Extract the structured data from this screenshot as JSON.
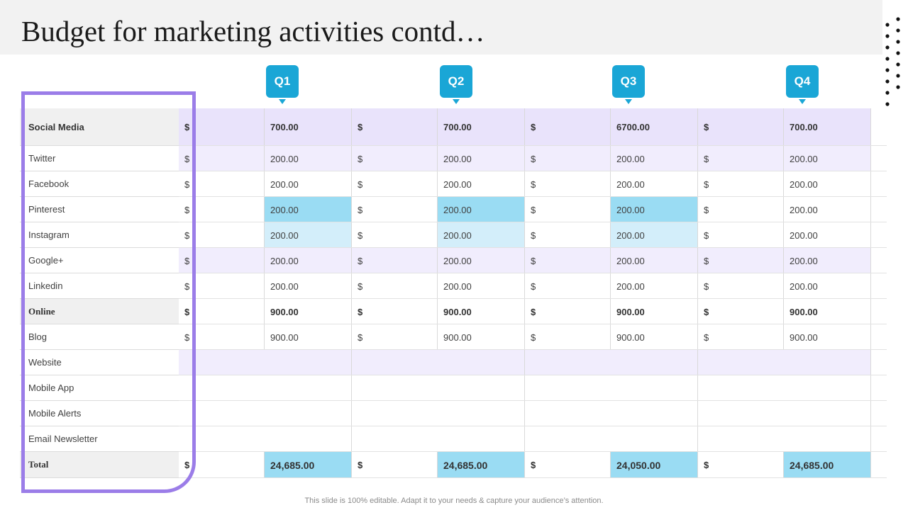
{
  "title": "Budget for marketing activities contd…",
  "quarters": [
    "Q1",
    "Q2",
    "Q3",
    "Q4"
  ],
  "currency_symbol": "$",
  "colors": {
    "accent_blue": "#1aa6d6",
    "purple_frame": "#9b7de8",
    "highlight_blue": "#9adcf3",
    "light_blue": "#d3eefa",
    "lavender": "#f1edfd",
    "lavender_header": "#e9e3fb"
  },
  "rows": [
    {
      "label": "Social Media",
      "values": [
        "700.00",
        "700.00",
        "6700.00",
        "700.00"
      ],
      "style": "header"
    },
    {
      "label": "Twitter",
      "values": [
        "200.00",
        "200.00",
        "200.00",
        "200.00"
      ]
    },
    {
      "label": "Facebook",
      "values": [
        "200.00",
        "200.00",
        "200.00",
        "200.00"
      ]
    },
    {
      "label": "Pinterest",
      "values": [
        "200.00",
        "200.00",
        "200.00",
        "200.00"
      ]
    },
    {
      "label": "Instagram",
      "values": [
        "200.00",
        "200.00",
        "200.00",
        "200.00"
      ]
    },
    {
      "label": "Google+",
      "values": [
        "200.00",
        "200.00",
        "200.00",
        "200.00"
      ]
    },
    {
      "label": "Linkedin",
      "values": [
        "200.00",
        "200.00",
        "200.00",
        "200.00"
      ]
    },
    {
      "label": "Online",
      "values": [
        "900.00",
        "900.00",
        "900.00",
        "900.00"
      ],
      "style": "section"
    },
    {
      "label": "Blog",
      "values": [
        "900.00",
        "900.00",
        "900.00",
        "900.00"
      ]
    },
    {
      "label": "Website",
      "values": []
    },
    {
      "label": "Mobile App",
      "values": []
    },
    {
      "label": "Mobile Alerts",
      "values": []
    },
    {
      "label": "Email Newsletter",
      "values": []
    },
    {
      "label": "Total",
      "values": [
        "24,685.00",
        "24,685.00",
        "24,050.00",
        "24,685.00"
      ],
      "style": "total"
    }
  ],
  "footer": "This slide is 100% editable. Adapt it to your needs & capture your audience’s attention."
}
